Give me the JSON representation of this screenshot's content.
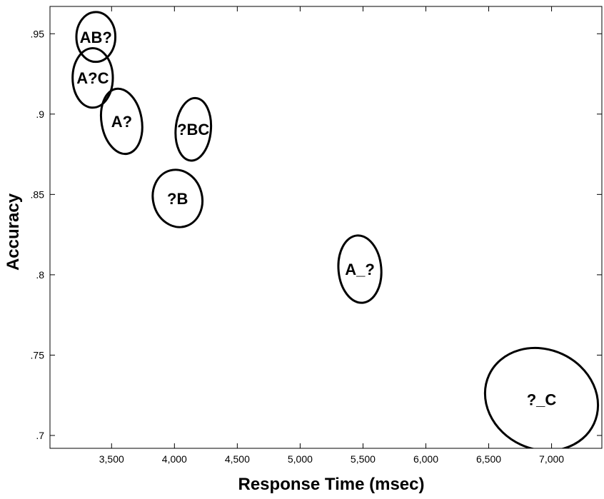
{
  "chart_data": {
    "type": "scatter",
    "title": "",
    "xlabel": "Response Time (msec)",
    "ylabel": "Accuracy",
    "xlim": [
      3010,
      7400
    ],
    "ylim": [
      0.692,
      0.967
    ],
    "x_ticks": [
      3500,
      4000,
      4500,
      5000,
      5500,
      6000,
      6500,
      7000
    ],
    "x_tick_labels": [
      "3,500",
      "4,000",
      "4,500",
      "5,000",
      "5,500",
      "6,000",
      "6,500",
      "7,000"
    ],
    "y_ticks": [
      0.7,
      0.75,
      0.8,
      0.85,
      0.9,
      0.95
    ],
    "y_tick_labels": [
      ".7",
      ".75",
      ".8",
      ".85",
      ".9",
      ".95"
    ],
    "grid": false,
    "legend": "none",
    "marker": "ellipse",
    "points": [
      {
        "label": "AB?",
        "x": 3375,
        "y": 0.948,
        "x_err": 155,
        "y_err": 0.0155,
        "tilt": 0
      },
      {
        "label": "A?C",
        "x": 3350,
        "y": 0.9225,
        "x_err": 160,
        "y_err": 0.0185,
        "tilt": 0
      },
      {
        "label": "A?",
        "x": 3580,
        "y": 0.8955,
        "x_err": 160,
        "y_err": 0.0205,
        "tilt": -10
      },
      {
        "label": "?BC",
        "x": 4150,
        "y": 0.8905,
        "x_err": 140,
        "y_err": 0.0195,
        "tilt": 5
      },
      {
        "label": "?B",
        "x": 4025,
        "y": 0.8475,
        "x_err": 195,
        "y_err": 0.018,
        "tilt": -15
      },
      {
        "label": "A_?",
        "x": 5475,
        "y": 0.8035,
        "x_err": 170,
        "y_err": 0.021,
        "tilt": -5
      },
      {
        "label": "?_C",
        "x": 6920,
        "y": 0.7225,
        "x_err": 460,
        "y_err": 0.031,
        "tilt": 25
      }
    ]
  }
}
